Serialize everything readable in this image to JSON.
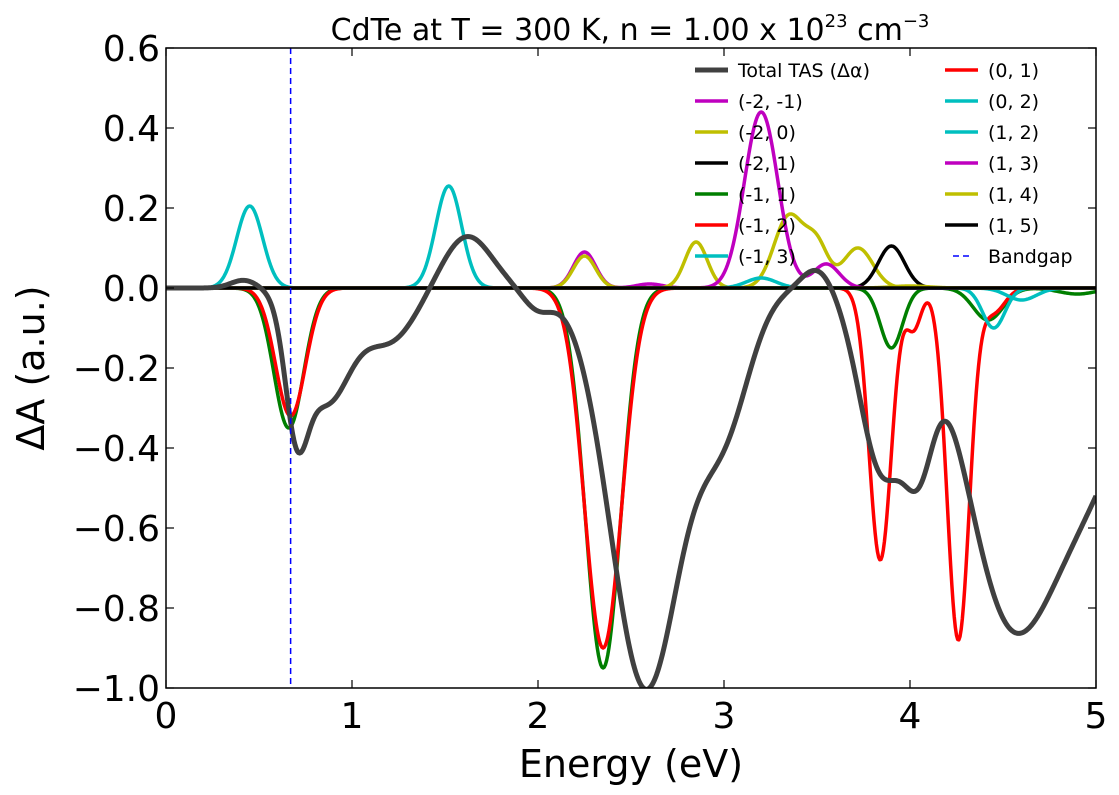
{
  "chart_data": {
    "type": "line",
    "title_main": "CdTe at T = 300 K, n = 1.00 x 10",
    "title_exp": "23",
    "title_unit": "cm",
    "title_unit_exp": "−3",
    "xlabel": "Energy (eV)",
    "ylabel": "ΔA (a.u.)",
    "xlim": [
      0,
      5
    ],
    "ylim": [
      -1.0,
      0.6
    ],
    "xticks": [
      0,
      1,
      2,
      3,
      4,
      5
    ],
    "xtick_labels": [
      "0",
      "1",
      "2",
      "3",
      "4",
      "5"
    ],
    "yticks": [
      -1.0,
      -0.8,
      -0.6,
      -0.4,
      -0.2,
      0.0,
      0.2,
      0.4,
      0.6
    ],
    "ytick_labels": [
      "−1.0",
      "−0.8",
      "−0.6",
      "−0.4",
      "−0.2",
      "0.0",
      "0.2",
      "0.4",
      "0.6"
    ],
    "grid": false,
    "legend_position": "top-right",
    "bandgap": 0.67,
    "series": [
      {
        "name": "Total TAS (Δα)",
        "color": "#404040",
        "width": 5,
        "peaks": [
          [
            0.42,
            0.02,
            0.07
          ],
          [
            0.7,
            -0.27,
            0.06
          ],
          [
            0.86,
            -0.28,
            0.13
          ],
          [
            1.2,
            -0.13,
            0.14
          ],
          [
            1.62,
            0.13,
            0.13
          ],
          [
            2.0,
            -0.05,
            0.08
          ],
          [
            2.58,
            -1.0,
            0.19
          ],
          [
            3.0,
            -0.32,
            0.14
          ],
          [
            3.5,
            0.05,
            0.08
          ],
          [
            3.85,
            -0.45,
            0.12
          ],
          [
            4.05,
            -0.3,
            0.08
          ],
          [
            4.5,
            -0.62,
            0.22
          ],
          [
            4.9,
            -0.5,
            0.3
          ]
        ]
      },
      {
        "name": "(-2, -1)",
        "color": "#bf00bf",
        "width": 3.5,
        "peaks": [
          [
            2.25,
            0.09,
            0.06
          ],
          [
            2.6,
            0.01,
            0.07
          ]
        ]
      },
      {
        "name": "(-2, 0)",
        "color": "#bfbf00",
        "width": 3.5,
        "peaks": [
          [
            2.25,
            0.08,
            0.06
          ],
          [
            2.85,
            0.115,
            0.06
          ],
          [
            3.35,
            0.18,
            0.08
          ],
          [
            3.5,
            0.1,
            0.06
          ],
          [
            3.72,
            0.1,
            0.08
          ]
        ]
      },
      {
        "name": "(-2, 1)",
        "color": "#000000",
        "width": 3.5,
        "peaks": [
          [
            3.9,
            0.105,
            0.07
          ]
        ]
      },
      {
        "name": "(-1, 1)",
        "color": "#007f00",
        "width": 3.5,
        "peaks": [
          [
            0.66,
            -0.35,
            0.08
          ],
          [
            2.35,
            -0.95,
            0.095
          ],
          [
            3.9,
            -0.15,
            0.06
          ],
          [
            4.42,
            -0.08,
            0.08
          ],
          [
            4.9,
            -0.015,
            0.1
          ]
        ]
      },
      {
        "name": "(-1, 2)",
        "color": "#ff0000",
        "width": 3.5,
        "peaks": [
          [
            0.67,
            -0.32,
            0.08
          ],
          [
            2.35,
            -0.9,
            0.1
          ]
        ]
      },
      {
        "name": "(-1, 3)",
        "color": "#00bfbf",
        "width": 3.5,
        "peaks": [
          [
            0.45,
            0.205,
            0.07
          ],
          [
            1.52,
            0.255,
            0.07
          ],
          [
            3.2,
            0.025,
            0.08
          ]
        ]
      },
      {
        "name": "(0, 1)",
        "color": "#ff0000",
        "width": 3.5,
        "peaks": [
          [
            3.84,
            -0.68,
            0.06
          ],
          [
            4.02,
            -0.1,
            0.04
          ],
          [
            4.26,
            -0.88,
            0.06
          ],
          [
            4.45,
            -0.06,
            0.06
          ]
        ]
      },
      {
        "name": "(0, 2)",
        "color": "#00bfbf",
        "width": 3.5,
        "peaks": [
          [
            4.45,
            -0.1,
            0.06
          ]
        ]
      },
      {
        "name": "(1, 2)",
        "color": "#00bfbf",
        "width": 3.5,
        "peaks": [
          [
            4.6,
            -0.03,
            0.08
          ]
        ]
      },
      {
        "name": "(1, 3)",
        "color": "#bf00bf",
        "width": 3.5,
        "peaks": [
          [
            3.2,
            0.44,
            0.09
          ],
          [
            3.55,
            0.06,
            0.07
          ]
        ]
      },
      {
        "name": "(1, 4)",
        "color": "#bfbf00",
        "width": 3.5,
        "peaks": [
          [
            4.0,
            0.005,
            0.1
          ]
        ]
      },
      {
        "name": "(1, 5)",
        "color": "#000000",
        "width": 3.5,
        "peaks": []
      }
    ],
    "bandgap_label": "Bandgap",
    "bandgap_color": "#0000ff"
  }
}
